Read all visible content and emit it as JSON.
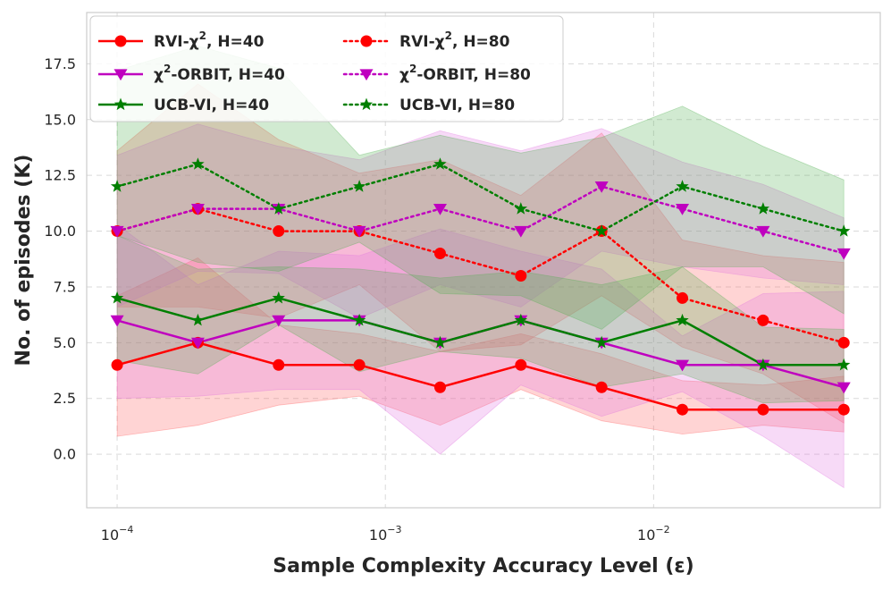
{
  "chart_data": {
    "type": "line",
    "xlabel": "Sample Complexity Accuracy Level (ε)",
    "ylabel": "No. of episodes (K)",
    "x_scale": "log",
    "xlim": [
      7.7e-05,
      0.07
    ],
    "ylim": [
      -2.4,
      19.8
    ],
    "grid": true,
    "legend_position": "top-left",
    "yticks": [
      "0.0",
      "2.5",
      "5.0",
      "7.5",
      "10.0",
      "12.5",
      "15.0",
      "17.5"
    ],
    "ytick_values": [
      0,
      2.5,
      5,
      7.5,
      10,
      12.5,
      15,
      17.5
    ],
    "xticks": [
      {
        "value": 0.0001,
        "base": "10",
        "exp": "−4"
      },
      {
        "value": 0.001,
        "base": "10",
        "exp": "−3"
      },
      {
        "value": 0.01,
        "base": "10",
        "exp": "−2"
      }
    ],
    "x": [
      0.0001,
      0.0002,
      0.0004,
      0.0008,
      0.0016,
      0.0032,
      0.0064,
      0.0128,
      0.0256,
      0.0512
    ],
    "series": [
      {
        "name_main": "RVI-χ",
        "name_sup": "2",
        "name_tail": ", H=40",
        "color": "#ff0000",
        "fill": "#ff5a5a",
        "linestyle": "solid",
        "marker": "circle",
        "values": [
          4,
          5,
          4,
          4,
          3,
          4,
          3,
          2,
          2,
          2
        ],
        "lower": [
          0.8,
          1.3,
          2.2,
          2.6,
          1.3,
          2.9,
          1.5,
          0.9,
          1.3,
          1.0
        ],
        "upper": [
          7.1,
          8.8,
          5.8,
          5.4,
          4.6,
          5.4,
          4.5,
          3.3,
          3.1,
          3.5
        ]
      },
      {
        "name_main": "RVI-χ",
        "name_sup": "2",
        "name_tail": ", H=80",
        "color": "#ff0000",
        "fill": "#ff5a5a",
        "linestyle": "dotted",
        "marker": "circle",
        "values": [
          10,
          11,
          10,
          10,
          9,
          8,
          10,
          7,
          6,
          5
        ],
        "lower": [
          6.6,
          6.6,
          6.1,
          7.6,
          4.6,
          4.9,
          7.1,
          4.8,
          3.6,
          1.4
        ],
        "upper": [
          13.6,
          16.6,
          14.1,
          12.6,
          13.2,
          11.6,
          14.4,
          9.6,
          8.9,
          8.6
        ]
      },
      {
        "name_main": "χ",
        "name_sup": "2",
        "name_tail": "-ORBIT, H=40",
        "color": "#bf00bf",
        "fill": "#e070e0",
        "linestyle": "solid",
        "marker": "triangle-down",
        "values": [
          6,
          5,
          6,
          6,
          5,
          6,
          5,
          4,
          4,
          3
        ],
        "lower": [
          2.5,
          2.6,
          2.9,
          2.9,
          0.0,
          3.1,
          1.7,
          2.8,
          0.8,
          -1.5
        ],
        "upper": [
          10.3,
          7.6,
          9.1,
          8.9,
          10.1,
          9.1,
          8.3,
          5.3,
          7.2,
          7.3
        ]
      },
      {
        "name_main": "χ",
        "name_sup": "2",
        "name_tail": "-ORBIT, H=80",
        "color": "#bf00bf",
        "fill": "#e070e0",
        "linestyle": "dotted",
        "marker": "triangle-down",
        "values": [
          10,
          11,
          11,
          10,
          11,
          10,
          12,
          11,
          10,
          9
        ],
        "lower": [
          6.6,
          8.2,
          8.1,
          6.1,
          7.6,
          6.6,
          9.1,
          8.4,
          7.9,
          7.6
        ],
        "upper": [
          13.4,
          14.8,
          13.8,
          13.2,
          14.5,
          13.6,
          14.6,
          13.1,
          12.1,
          10.6
        ]
      },
      {
        "name_main": "UCB-VI",
        "name_sup": "",
        "name_tail": ", H=40",
        "color": "#007f00",
        "fill": "#4cae4c",
        "linestyle": "solid",
        "marker": "star",
        "values": [
          7,
          6,
          7,
          6,
          5,
          6,
          5,
          6,
          4,
          4
        ],
        "lower": [
          4.2,
          3.6,
          5.8,
          3.7,
          4.6,
          4.3,
          3.0,
          3.6,
          2.3,
          2.4
        ],
        "upper": [
          9.8,
          8.3,
          8.4,
          8.3,
          7.9,
          8.2,
          7.6,
          8.4,
          5.7,
          5.6
        ]
      },
      {
        "name_main": "UCB-VI",
        "name_sup": "",
        "name_tail": ", H=80",
        "color": "#007f00",
        "fill": "#4cae4c",
        "linestyle": "dotted",
        "marker": "star",
        "values": [
          12,
          13,
          11,
          12,
          13,
          11,
          10,
          12,
          11,
          10
        ],
        "lower": [
          9.8,
          8.6,
          8.2,
          9.5,
          7.2,
          7.1,
          5.6,
          8.4,
          8.4,
          6.3
        ],
        "upper": [
          17.2,
          18.3,
          17.3,
          13.4,
          14.3,
          13.5,
          14.2,
          15.6,
          13.8,
          12.3
        ]
      }
    ],
    "legend_order": [
      0,
      1,
      2,
      3,
      4,
      5
    ]
  }
}
